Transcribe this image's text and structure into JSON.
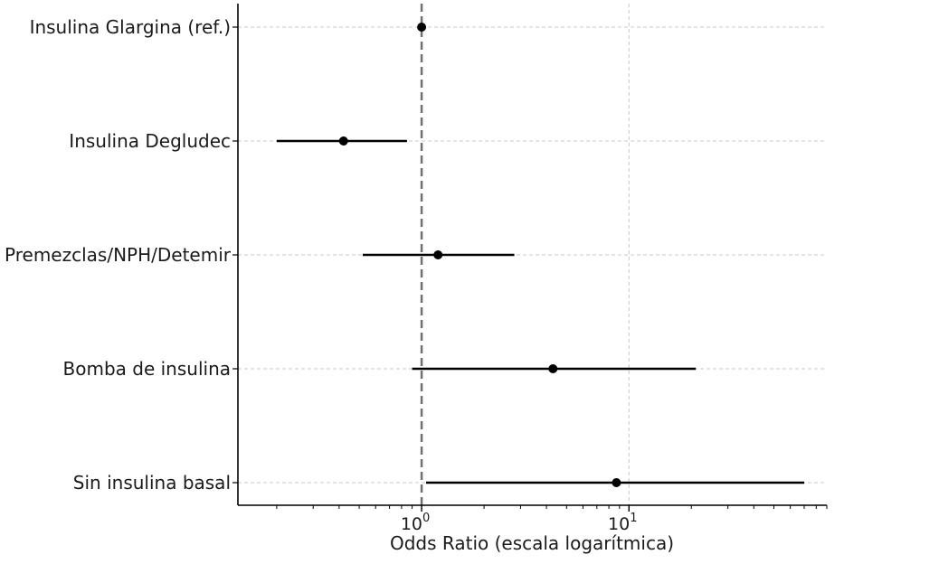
{
  "chart_data": {
    "type": "forest",
    "title": "",
    "xlabel": "Odds Ratio (escala logarítmica)",
    "ylabel": "",
    "x_scale": "log",
    "xlim": [
      0.13,
      90
    ],
    "x_ticks": [
      {
        "value": 1,
        "base": "10",
        "exp": "0"
      },
      {
        "value": 10,
        "base": "10",
        "exp": "1"
      }
    ],
    "reference_line": 1,
    "grid": true,
    "categories": [
      "Insulina Glargina (ref.)",
      "Insulina Degludec",
      "Premezclas/NPH/Detemir",
      "Bomba de insulina",
      "Sin insulina basal"
    ],
    "series": [
      {
        "values": [
          1.0,
          0.42,
          1.2,
          4.3,
          8.7
        ],
        "ci_low": [
          1.0,
          0.2,
          0.52,
          0.9,
          1.05
        ],
        "ci_high": [
          1.0,
          0.85,
          2.8,
          21.0,
          70.0
        ]
      }
    ]
  }
}
